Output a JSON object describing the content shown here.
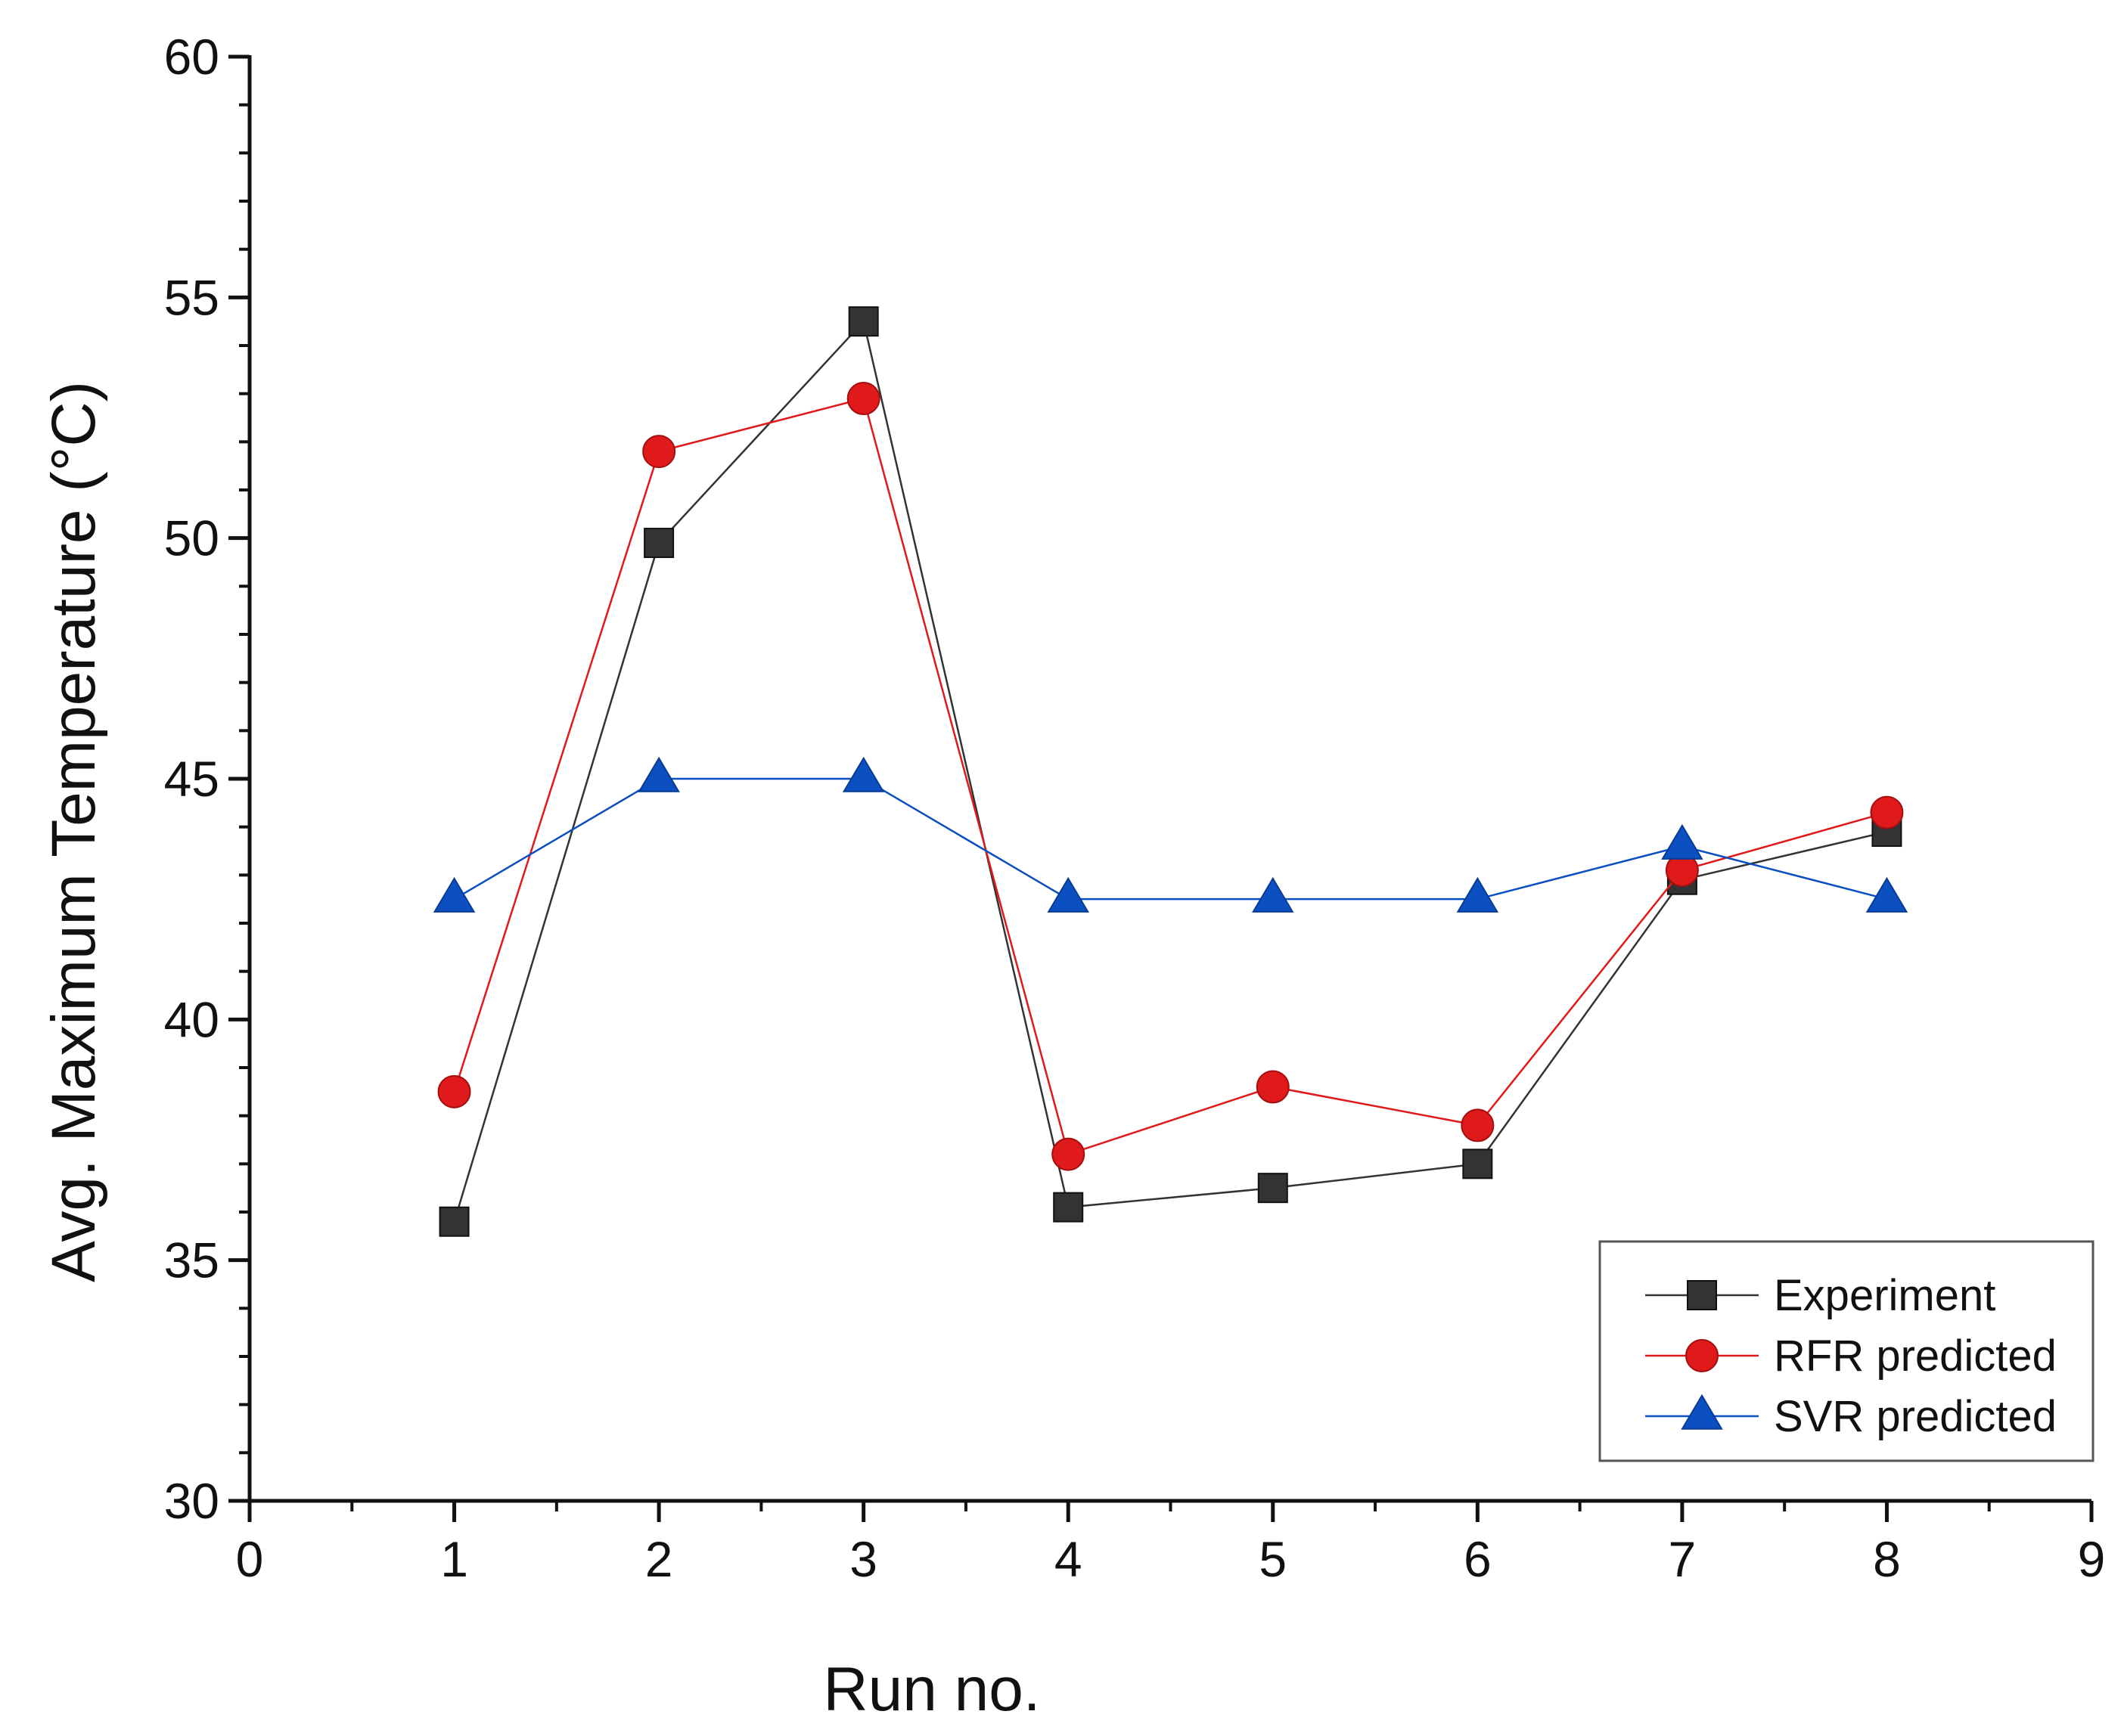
{
  "chart_data": {
    "type": "line",
    "title": "",
    "xlabel": "Run no.",
    "ylabel": "Avg. Maximum Temperature (°C)",
    "xlim": [
      0,
      9
    ],
    "ylim": [
      30,
      60
    ],
    "x_ticks": [
      "0",
      "1",
      "2",
      "3",
      "4",
      "5",
      "6",
      "7",
      "8",
      "9"
    ],
    "y_ticks": [
      "30",
      "35",
      "40",
      "45",
      "50",
      "55",
      "60"
    ],
    "x": [
      1,
      2,
      3,
      4,
      5,
      6,
      7,
      8
    ],
    "grid": false,
    "legend_position": "bottom-right",
    "series": [
      {
        "name": "Experiment",
        "marker": "square",
        "color": "#333333",
        "values": [
          35.8,
          49.9,
          54.5,
          36.1,
          36.5,
          37.0,
          42.9,
          43.9
        ]
      },
      {
        "name": "RFR predicted",
        "marker": "circle",
        "color": "#e01a1a",
        "values": [
          38.5,
          51.8,
          52.9,
          37.2,
          38.6,
          37.8,
          43.1,
          44.3
        ]
      },
      {
        "name": "SVR predicted",
        "marker": "triangle",
        "color": "#0b4fc1",
        "values": [
          42.5,
          45.0,
          45.0,
          42.5,
          42.5,
          42.5,
          43.6,
          42.5
        ]
      }
    ]
  }
}
